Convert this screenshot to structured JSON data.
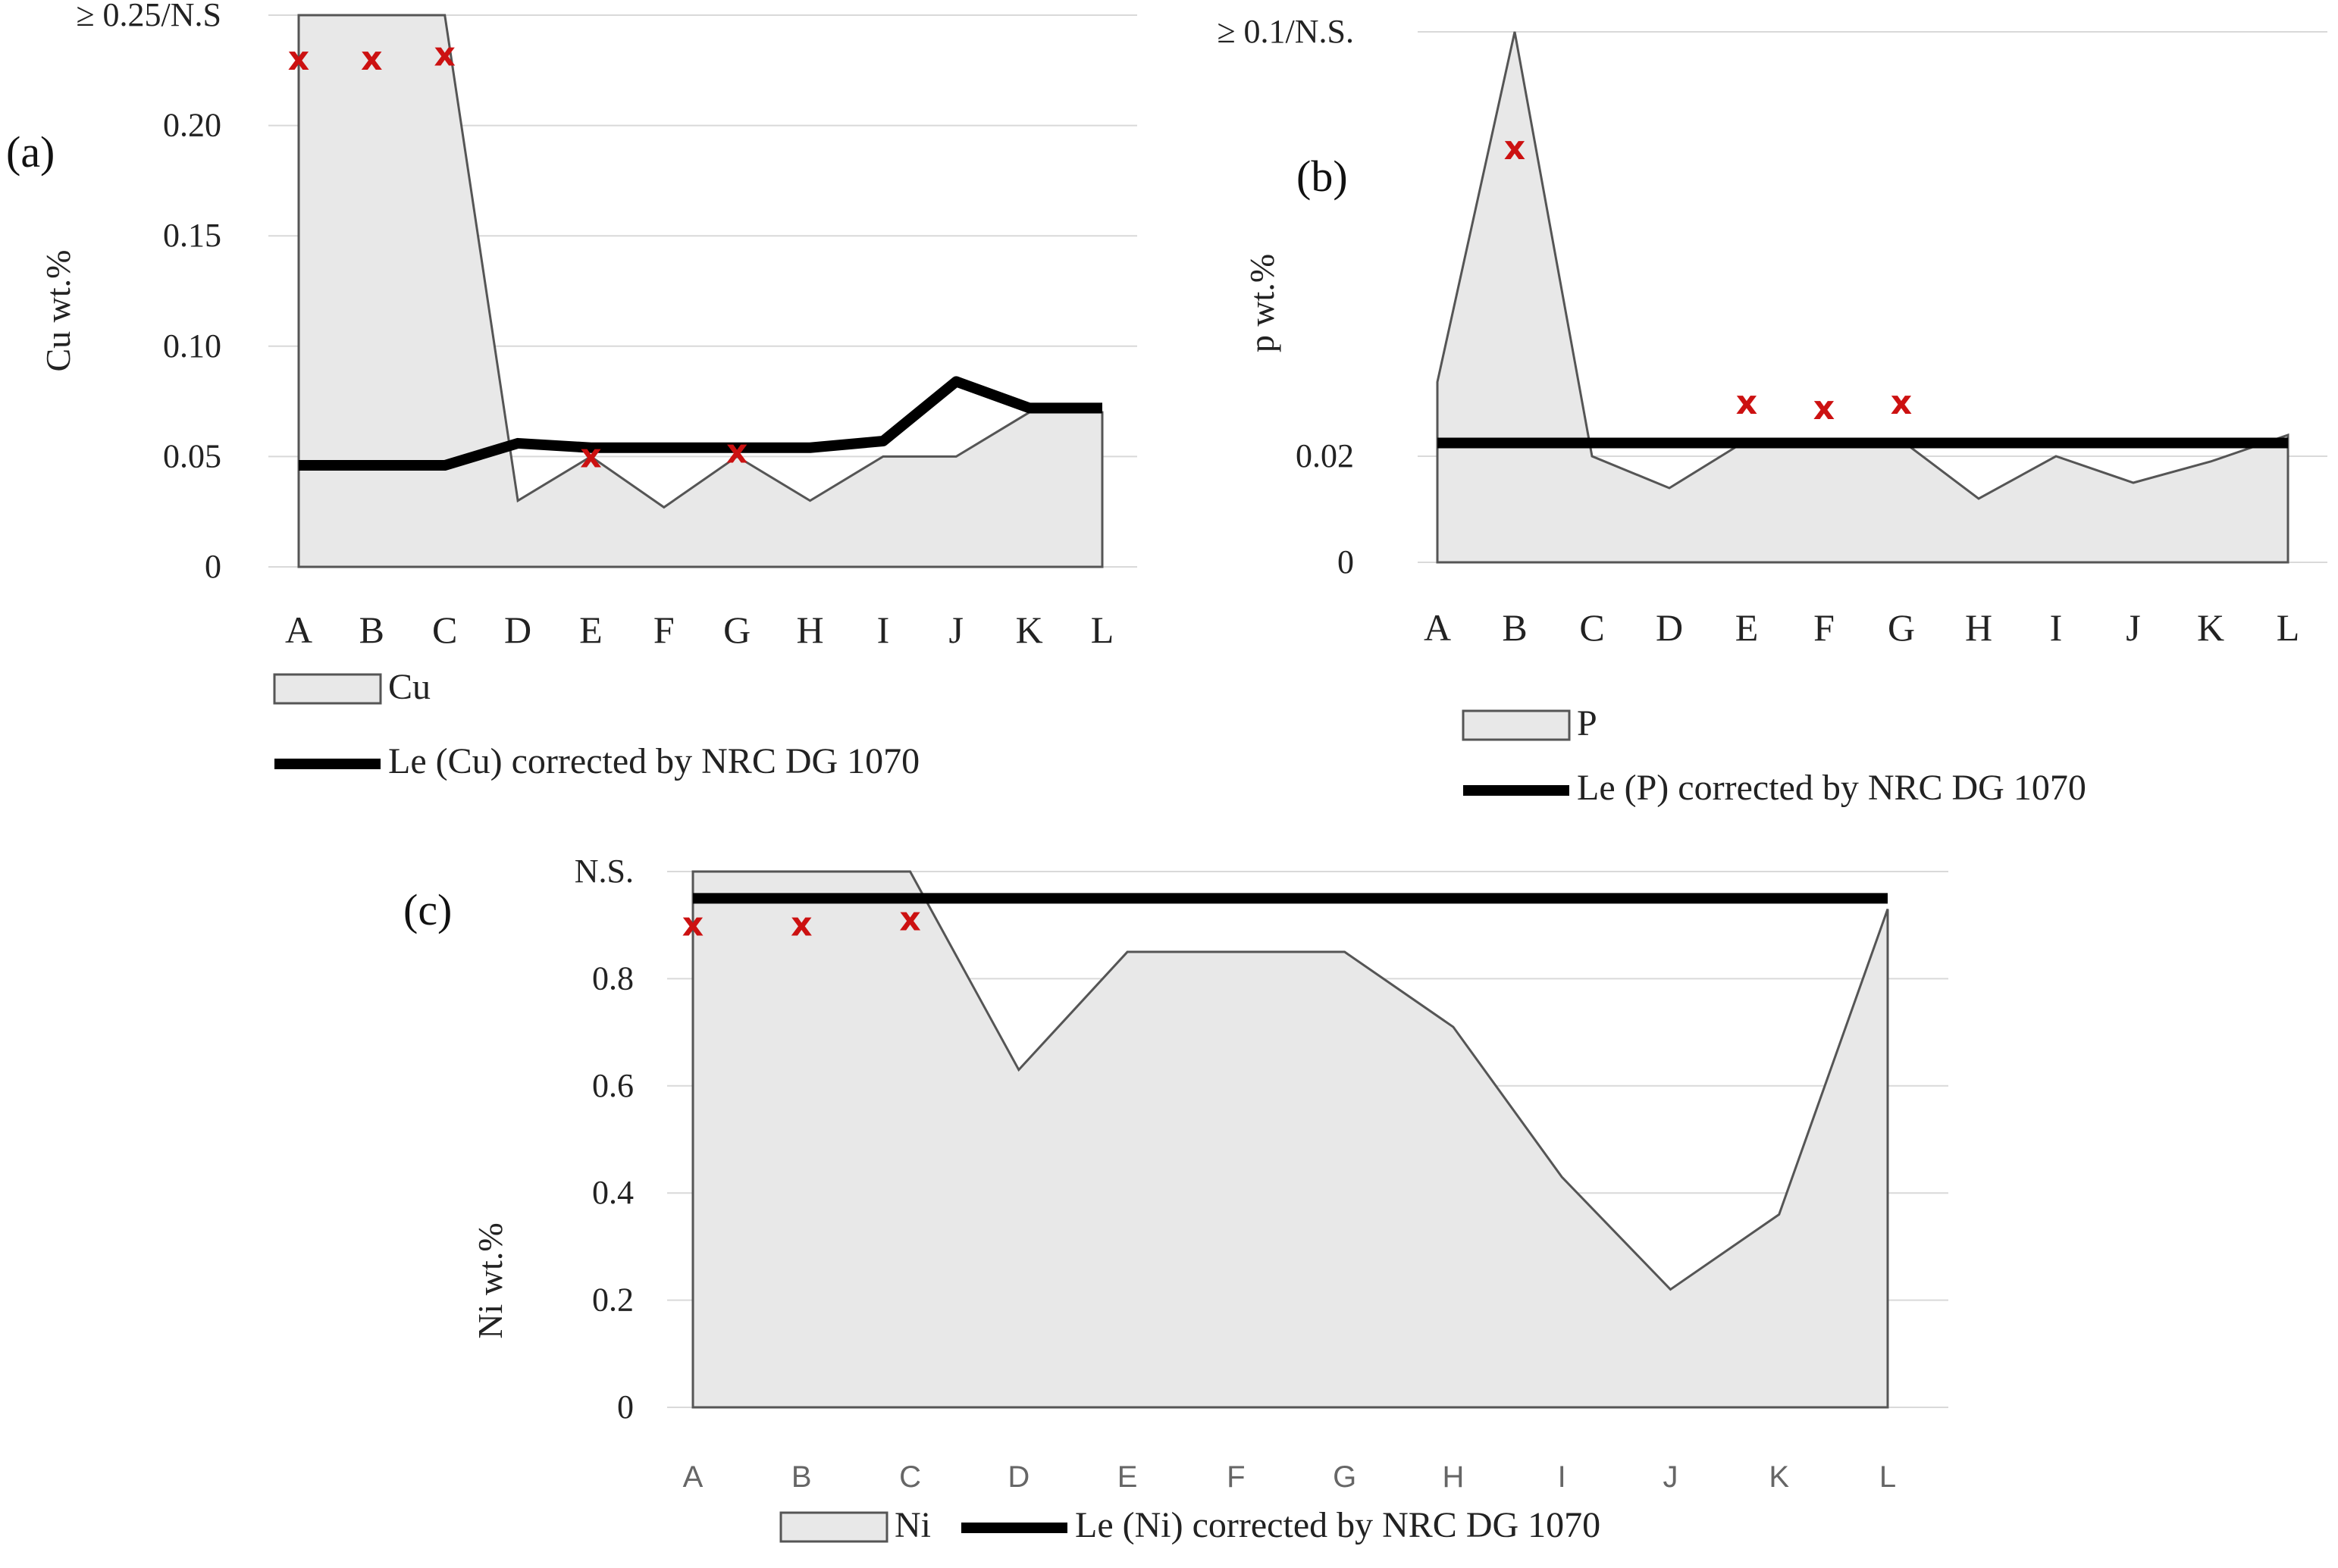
{
  "chart_data": [
    {
      "panel": "(a)",
      "type": "area",
      "ylabel": "Cu wt.%",
      "categories": [
        "A",
        "B",
        "C",
        "D",
        "E",
        "F",
        "G",
        "H",
        "I",
        "J",
        "K",
        "L"
      ],
      "y_ticks": [
        "0",
        "0.05",
        "0.10",
        "0.15",
        "0.20",
        "≥ 0.25/N.S"
      ],
      "ylim": [
        0,
        0.25
      ],
      "series": [
        {
          "name": "Cu",
          "kind": "area",
          "values": [
            0.25,
            0.25,
            0.25,
            0.03,
            0.05,
            0.027,
            0.05,
            0.03,
            0.05,
            0.05,
            0.07,
            0.07
          ]
        },
        {
          "name": "Le (Cu) corrected by NRC DG 1070",
          "kind": "line",
          "values": [
            0.046,
            0.046,
            0.046,
            0.056,
            0.054,
            0.054,
            0.054,
            0.054,
            0.057,
            0.084,
            0.072,
            0.072
          ]
        }
      ],
      "markers": [
        {
          "category": "A",
          "value": 0.23
        },
        {
          "category": "B",
          "value": 0.23
        },
        {
          "category": "C",
          "value": 0.232
        },
        {
          "category": "E",
          "value": 0.05
        },
        {
          "category": "G",
          "value": 0.052
        }
      ],
      "marker_symbol": "x",
      "grid": true
    },
    {
      "panel": "(b)",
      "type": "area",
      "ylabel": "p wt.%",
      "categories": [
        "A",
        "B",
        "C",
        "D",
        "E",
        "F",
        "G",
        "H",
        "I",
        "J",
        "K",
        "L"
      ],
      "y_ticks": [
        "0",
        "0.02",
        "≥ 0.1/N.S."
      ],
      "ylim": [
        0,
        0.1
      ],
      "series": [
        {
          "name": "P",
          "kind": "area",
          "values": [
            0.034,
            0.1,
            0.02,
            0.014,
            0.023,
            0.023,
            0.023,
            0.012,
            0.02,
            0.015,
            0.019,
            0.024
          ]
        },
        {
          "name": "Le (P) corrected by NRC DG 1070",
          "kind": "line",
          "values": [
            0.0225,
            0.0225,
            0.0225,
            0.0225,
            0.0225,
            0.0225,
            0.0225,
            0.0225,
            0.0225,
            0.0225,
            0.0225,
            0.0225
          ]
        }
      ],
      "markers": [
        {
          "category": "B",
          "value": 0.078
        },
        {
          "category": "E",
          "value": 0.03
        },
        {
          "category": "F",
          "value": 0.029
        },
        {
          "category": "G",
          "value": 0.03
        }
      ],
      "marker_symbol": "x",
      "grid": true
    },
    {
      "panel": "(c)",
      "type": "area",
      "ylabel": "Ni wt.%",
      "categories": [
        "A",
        "B",
        "C",
        "D",
        "E",
        "F",
        "G",
        "H",
        "I",
        "J",
        "K",
        "L"
      ],
      "y_ticks": [
        "0",
        "0.2",
        "0.4",
        "0.6",
        "0.8",
        "N.S."
      ],
      "ylim": [
        0,
        1.0
      ],
      "series": [
        {
          "name": "Ni",
          "kind": "area",
          "values": [
            1.0,
            1.0,
            1.0,
            0.63,
            0.85,
            0.85,
            0.85,
            0.71,
            0.43,
            0.22,
            0.36,
            0.93
          ]
        },
        {
          "name": "Le (Ni) corrected by NRC DG 1070",
          "kind": "line",
          "values": [
            0.95,
            0.95,
            0.95,
            0.95,
            0.95,
            0.95,
            0.95,
            0.95,
            0.95,
            0.95,
            0.95,
            0.95
          ]
        }
      ],
      "markers": [
        {
          "category": "A",
          "value": 0.9
        },
        {
          "category": "B",
          "value": 0.9
        },
        {
          "category": "C",
          "value": 0.91
        }
      ],
      "marker_symbol": "x",
      "grid": true
    }
  ]
}
